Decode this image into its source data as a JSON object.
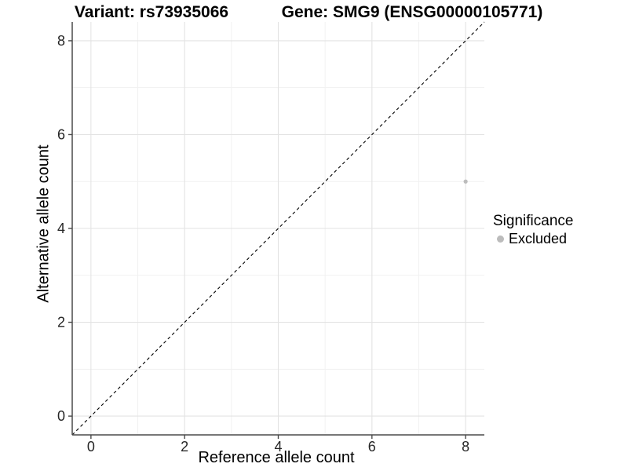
{
  "chart_data": {
    "type": "scatter",
    "titles": {
      "left": "Variant: rs73935066",
      "right": "Gene: SMG9 (ENSG00000105771)"
    },
    "xlabel": "Reference allele count",
    "ylabel": "Alternative allele count",
    "xlim": [
      -0.4,
      8.4
    ],
    "ylim": [
      -0.4,
      8.4
    ],
    "x_ticks": [
      0,
      2,
      4,
      6,
      8
    ],
    "y_ticks": [
      0,
      2,
      4,
      6,
      8
    ],
    "x_minor_ticks": [
      1,
      3,
      5,
      7
    ],
    "y_minor_ticks": [
      1,
      3,
      5,
      7
    ],
    "grid": "major-and-minor",
    "points": [
      {
        "x": 8,
        "y": 5,
        "series": "Excluded"
      }
    ],
    "identity_line": {
      "style": "dashed",
      "from": [
        -0.4,
        -0.4
      ],
      "to": [
        8.4,
        8.4
      ]
    },
    "legend": {
      "title": "Significance",
      "position": "right",
      "items": [
        {
          "label": "Excluded",
          "color": "#bcbcbc",
          "marker": "circle"
        }
      ]
    },
    "colors": {
      "point": "#bcbcbc",
      "grid_major": "#e3e3e3",
      "grid_minor": "#f1f1f1",
      "axis": "#4a4a4a",
      "identity_line": "#000000",
      "tick_label": "#262626",
      "background": "#ffffff"
    }
  }
}
